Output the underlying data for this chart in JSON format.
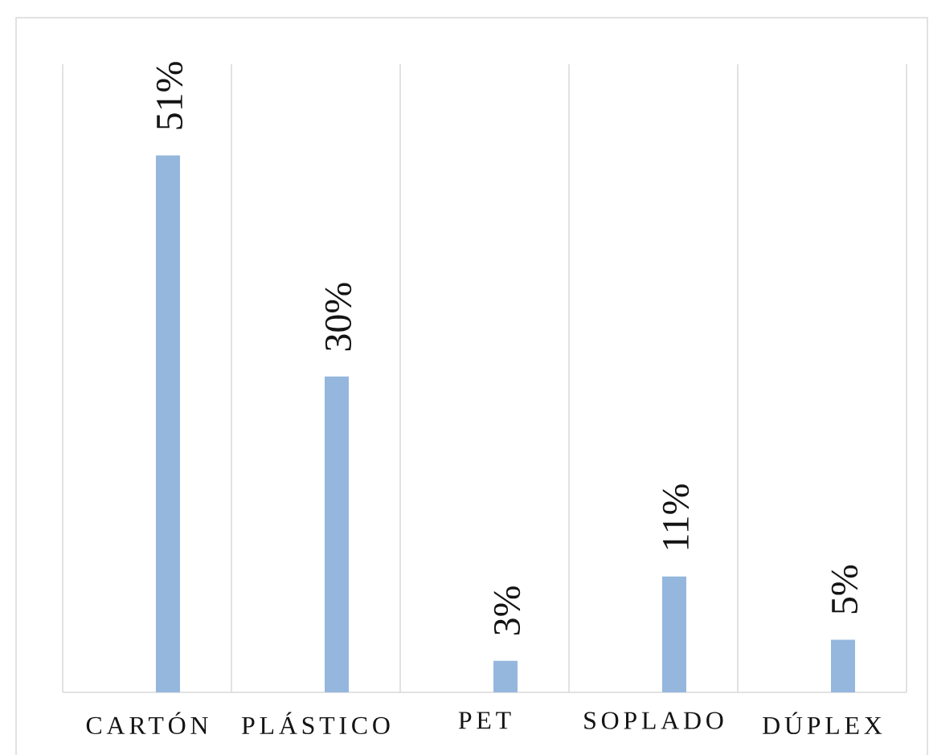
{
  "chart_data": {
    "type": "bar",
    "categories": [
      "CARTÓN",
      "PLÁSTICO",
      "PET",
      "SOPLADO",
      "DÚPLEX"
    ],
    "values": [
      51,
      30,
      3,
      11,
      5
    ],
    "value_labels": [
      "51%",
      "30%",
      "3%",
      "11%",
      "5%"
    ],
    "color": "#95b7de",
    "grid": "x"
  }
}
